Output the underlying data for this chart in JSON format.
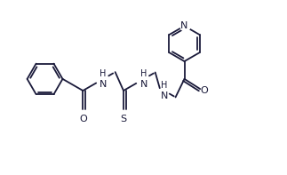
{
  "background_color": "#ffffff",
  "line_color": "#1a1a3a",
  "text_color": "#1a1a3a",
  "figsize": [
    3.23,
    1.97
  ],
  "dpi": 100,
  "lw": 1.3,
  "font_size": 8,
  "xlim": [
    0,
    10
  ],
  "ylim": [
    0,
    6.1
  ]
}
